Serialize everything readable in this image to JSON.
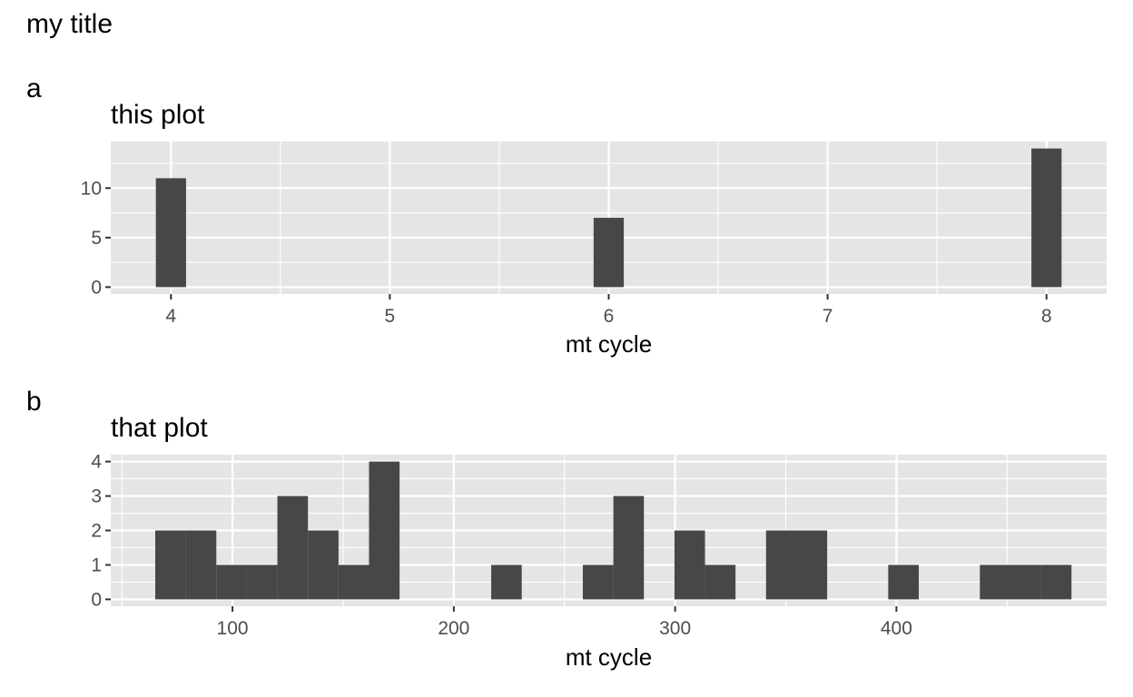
{
  "title": "my title",
  "colors": {
    "panel_background": "#E5E5E5",
    "grid_line": "#FFFFFF",
    "bar_fill": "#474747",
    "tick_text": "#4D4D4D",
    "text": "#000000"
  },
  "chart_data": [
    {
      "type": "bar",
      "tag": "a",
      "title": "this plot",
      "xlabel": "mt cycle",
      "ylabel": "",
      "xlim": [
        3.725,
        8.275
      ],
      "ylim": [
        -0.7,
        14.7
      ],
      "x_ticks": [
        4,
        5,
        6,
        7,
        8
      ],
      "y_ticks": [
        0,
        5,
        10
      ],
      "bin_width": 0.1379,
      "grid": true,
      "bars": [
        {
          "x": 4,
          "count": 11
        },
        {
          "x": 6,
          "count": 7
        },
        {
          "x": 8,
          "count": 14
        }
      ]
    },
    {
      "type": "bar",
      "tag": "b",
      "title": "that plot",
      "xlabel": "mt cycle",
      "ylabel": "",
      "xlim": [
        45,
        495
      ],
      "ylim": [
        -0.2,
        4.2
      ],
      "x_ticks": [
        100,
        200,
        300,
        400
      ],
      "y_ticks": [
        0,
        1,
        2,
        3,
        4
      ],
      "bin_width": 13.8,
      "grid": true,
      "bars": [
        {
          "x": 72,
          "count": 2
        },
        {
          "x": 85.8,
          "count": 2
        },
        {
          "x": 99.6,
          "count": 1
        },
        {
          "x": 113.4,
          "count": 1
        },
        {
          "x": 127.2,
          "count": 3
        },
        {
          "x": 141,
          "count": 2
        },
        {
          "x": 154.8,
          "count": 1
        },
        {
          "x": 168.6,
          "count": 4
        },
        {
          "x": 223.8,
          "count": 1
        },
        {
          "x": 265.2,
          "count": 1
        },
        {
          "x": 279,
          "count": 3
        },
        {
          "x": 306.6,
          "count": 2
        },
        {
          "x": 320.4,
          "count": 1
        },
        {
          "x": 348,
          "count": 2
        },
        {
          "x": 361.8,
          "count": 2
        },
        {
          "x": 403.2,
          "count": 1
        },
        {
          "x": 444.6,
          "count": 1
        },
        {
          "x": 458.4,
          "count": 1
        },
        {
          "x": 472.2,
          "count": 1
        }
      ]
    }
  ]
}
